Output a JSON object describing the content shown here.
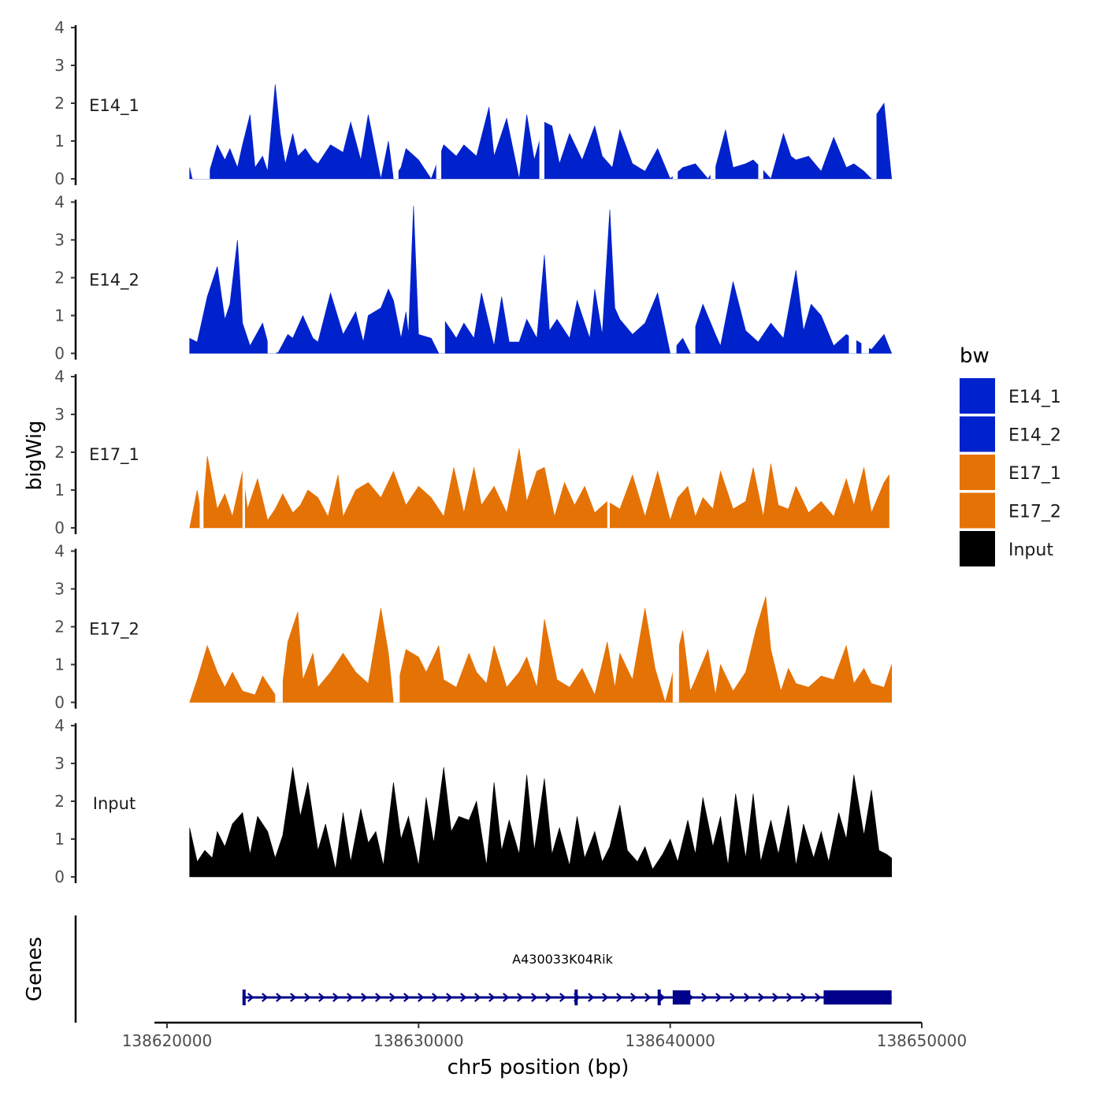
{
  "chart_data": {
    "type": "area",
    "title": "",
    "xlabel": "chr5 position (bp)",
    "ylabel": "bigWig",
    "xlim": [
      138619500,
      138650000
    ],
    "x_ticks": [
      138620000,
      138630000,
      138640000,
      138650000
    ],
    "x_tick_labels": [
      "138620000",
      "138630000",
      "138640000",
      "138650000"
    ],
    "ylim": [
      0,
      4
    ],
    "y_ticks": [
      "0",
      "1",
      "2",
      "3",
      "4"
    ],
    "legend": {
      "title": "bw",
      "placement": "right",
      "entries": [
        {
          "name": "E14_1",
          "color": "#0022CC"
        },
        {
          "name": "E14_2",
          "color": "#0022CC"
        },
        {
          "name": "E17_1",
          "color": "#E57205"
        },
        {
          "name": "E17_2",
          "color": "#E57205"
        },
        {
          "name": "Input",
          "color": "#000000"
        }
      ]
    },
    "series": [
      {
        "name": "E14_1",
        "color": "#0022CC",
        "x": [
          138620900,
          138621000,
          138621600,
          138622000,
          138622300,
          138622500,
          138622800,
          138623000,
          138623300,
          138623500,
          138623800,
          138624000,
          138624300,
          138624500,
          138624700,
          138625000,
          138625200,
          138625500,
          138625800,
          138626000,
          138626500,
          138627000,
          138627300,
          138627700,
          138628000,
          138628500,
          138628800,
          138629000,
          138629300,
          138629500,
          138630000,
          138630500,
          138631000,
          138631500,
          138631800,
          138632300,
          138632800,
          138633000,
          138633500,
          138634000,
          138634300,
          138634600,
          138635000,
          138635300,
          138635600,
          138636000,
          138636500,
          138637000,
          138637300,
          138637700,
          138638000,
          138638500,
          138639000,
          138639500,
          138640000,
          138640500,
          138641000,
          138641500,
          138641800,
          138642200,
          138642500,
          138643000,
          138643300,
          138643600,
          138644000,
          138644500,
          138644800,
          138645000,
          138645500,
          138646000,
          138646500,
          138647000,
          138647300,
          138647700,
          138648000,
          138648200,
          138648500,
          138648800
        ],
        "values": [
          0.3,
          0,
          0,
          0.9,
          0.5,
          0.8,
          0.3,
          0.9,
          1.7,
          0.3,
          0.6,
          0.2,
          2.5,
          1.2,
          0.4,
          1.2,
          0.6,
          0.8,
          0.5,
          0.4,
          0.9,
          0.7,
          1.5,
          0.5,
          1.7,
          0,
          1,
          0,
          0.3,
          0.8,
          0.5,
          0,
          0.9,
          0.6,
          0.9,
          0.6,
          1.9,
          0.6,
          1.6,
          0,
          1.7,
          0.5,
          1.5,
          1.4,
          0.4,
          1.2,
          0.5,
          1.4,
          0.6,
          0.3,
          1.3,
          0.4,
          0.2,
          0.8,
          0,
          0.3,
          0.4,
          0,
          0.3,
          1.3,
          0.3,
          0.4,
          0.5,
          0.3,
          0,
          1.2,
          0.6,
          0.5,
          0.6,
          0.2,
          1.1,
          0.3,
          0.4,
          0.2,
          0,
          1.7,
          2,
          0
        ],
        "gaps": [
          [
            138621050,
            138621700
          ],
          [
            138629000,
            138629200
          ],
          [
            138630700,
            138630900
          ],
          [
            138634800,
            138635000
          ],
          [
            138640100,
            138640300
          ],
          [
            138641600,
            138641800
          ],
          [
            138643500,
            138643700
          ],
          [
            138648000,
            138648200
          ]
        ]
      },
      {
        "name": "E14_2",
        "color": "#0022CC",
        "x": [
          138620900,
          138621200,
          138621600,
          138622000,
          138622300,
          138622500,
          138622800,
          138623000,
          138623300,
          138623800,
          138624000,
          138624400,
          138624800,
          138625000,
          138625400,
          138625800,
          138626000,
          138626500,
          138627000,
          138627500,
          138627800,
          138628000,
          138628500,
          138628800,
          138629000,
          138629300,
          138629500,
          138629600,
          138629800,
          138630000,
          138630500,
          138630800,
          138631000,
          138631500,
          138631800,
          138632200,
          138632500,
          138633000,
          138633300,
          138633600,
          138634000,
          138634300,
          138634700,
          138635000,
          138635200,
          138635500,
          138636000,
          138636300,
          138636800,
          138637000,
          138637300,
          138637600,
          138637800,
          138638000,
          138638500,
          138639000,
          138639500,
          138640000,
          138640500,
          138640800,
          138641000,
          138641300,
          138641800,
          138642000,
          138642500,
          138643000,
          138643500,
          138644000,
          138644500,
          138645000,
          138645300,
          138645600,
          138646000,
          138646500,
          138647000,
          138647500,
          138648000,
          138648500,
          138648800
        ],
        "values": [
          0.4,
          0.3,
          1.5,
          2.3,
          0.9,
          1.3,
          3,
          0.8,
          0.2,
          0.8,
          0.3,
          0,
          0.5,
          0.4,
          1,
          0.4,
          0.3,
          1.6,
          0.5,
          1.1,
          0.3,
          1,
          1.2,
          1.7,
          1.4,
          0.4,
          1.1,
          0.5,
          3.9,
          0.5,
          0.4,
          0,
          0.9,
          0.4,
          0.8,
          0.4,
          1.6,
          0.2,
          1.5,
          0.3,
          0.3,
          0.9,
          0.4,
          2.6,
          0.6,
          0.9,
          0.4,
          1.4,
          0.4,
          1.7,
          0.5,
          3.8,
          1.2,
          0.9,
          0.5,
          0.8,
          1.6,
          0,
          0.4,
          0,
          0.7,
          1.3,
          0.5,
          0.2,
          1.9,
          0.6,
          0.3,
          0.8,
          0.4,
          2.2,
          0.6,
          1.3,
          1,
          0.2,
          0.5,
          0.3,
          0.1,
          0.5,
          0
        ],
        "gaps": [
          [
            138624000,
            138624350
          ],
          [
            138630800,
            138631050
          ],
          [
            138640000,
            138640250
          ],
          [
            138640800,
            138641000
          ],
          [
            138647100,
            138647400
          ],
          [
            138647600,
            138647900
          ]
        ]
      },
      {
        "name": "E17_1",
        "color": "#E57205",
        "x": [
          138620900,
          138621200,
          138621400,
          138621600,
          138622000,
          138622300,
          138622600,
          138623000,
          138623200,
          138623600,
          138624000,
          138624300,
          138624600,
          138625000,
          138625300,
          138625600,
          138626000,
          138626400,
          138626800,
          138627000,
          138627500,
          138628000,
          138628500,
          138629000,
          138629500,
          138630000,
          138630500,
          138631000,
          138631400,
          138631800,
          138632200,
          138632500,
          138633000,
          138633500,
          138634000,
          138634300,
          138634700,
          138635000,
          138635400,
          138635800,
          138636200,
          138636600,
          138637000,
          138637500,
          138638000,
          138638500,
          138639000,
          138639500,
          138640000,
          138640300,
          138640700,
          138641000,
          138641300,
          138641700,
          138642000,
          138642500,
          138643000,
          138643300,
          138643700,
          138644000,
          138644300,
          138644700,
          138645000,
          138645500,
          138646000,
          138646500,
          138647000,
          138647300,
          138647700,
          138648000,
          138648500,
          138648700
        ],
        "values": [
          0,
          1,
          0.2,
          1.9,
          0.5,
          0.9,
          0.3,
          1.5,
          0.5,
          1.3,
          0.2,
          0.5,
          0.9,
          0.4,
          0.6,
          1,
          0.8,
          0.3,
          1.4,
          0.3,
          1,
          1.2,
          0.8,
          1.5,
          0.6,
          1.1,
          0.8,
          0.3,
          1.6,
          0.4,
          1.6,
          0.6,
          1.1,
          0.4,
          2.1,
          0.7,
          1.5,
          1.6,
          0.3,
          1.2,
          0.6,
          1.1,
          0.4,
          0.7,
          0.5,
          1.4,
          0.3,
          1.5,
          0.2,
          0.8,
          1.1,
          0.3,
          0.8,
          0.5,
          1.5,
          0.5,
          0.7,
          1.6,
          0.3,
          1.7,
          0.6,
          0.5,
          1.1,
          0.4,
          0.7,
          0.3,
          1.3,
          0.6,
          1.6,
          0.4,
          1.2,
          1.4
        ],
        "gaps": [
          [
            138621300,
            138621450
          ],
          [
            138623000,
            138623100
          ],
          [
            138637500,
            138637600
          ]
        ]
      },
      {
        "name": "E17_2",
        "color": "#E57205",
        "x": [
          138620900,
          138621200,
          138621600,
          138622000,
          138622300,
          138622600,
          138623000,
          138623500,
          138623800,
          138624000,
          138624500,
          138624800,
          138625200,
          138625400,
          138625800,
          138626000,
          138626500,
          138627000,
          138627500,
          138628000,
          138628500,
          138628800,
          138629000,
          138629500,
          138630000,
          138630300,
          138630800,
          138631000,
          138631500,
          138632000,
          138632300,
          138632700,
          138633000,
          138633500,
          138634000,
          138634300,
          138634700,
          138635000,
          138635500,
          138636000,
          138636500,
          138637000,
          138637500,
          138637800,
          138638000,
          138638500,
          138639000,
          138639400,
          138639800,
          138640000,
          138640500,
          138640800,
          138641000,
          138641500,
          138641800,
          138642000,
          138642500,
          138643000,
          138643400,
          138643800,
          138644000,
          138644400,
          138644700,
          138645000,
          138645500,
          138646000,
          138646500,
          138647000,
          138647300,
          138647700,
          138648000,
          138648500,
          138648800
        ],
        "values": [
          0,
          0.6,
          1.5,
          0.8,
          0.4,
          0.8,
          0.3,
          0.2,
          0.7,
          0.5,
          0,
          1.6,
          2.4,
          0.6,
          1.3,
          0.4,
          0.8,
          1.3,
          0.8,
          0.5,
          2.5,
          1.3,
          0,
          1.4,
          1.2,
          0.8,
          1.5,
          0.6,
          0.4,
          1.3,
          0.8,
          0.5,
          1.5,
          0.4,
          0.8,
          1.2,
          0.4,
          2.2,
          0.6,
          0.4,
          0.9,
          0.2,
          1.6,
          0.4,
          1.3,
          0.6,
          2.5,
          0.9,
          0,
          0.5,
          1.9,
          0.3,
          0.6,
          1.4,
          0.2,
          1,
          0.3,
          0.8,
          1.9,
          2.8,
          1.4,
          0.3,
          0.9,
          0.5,
          0.4,
          0.7,
          0.6,
          1.5,
          0.5,
          0.9,
          0.5,
          0.4,
          1
        ],
        "gaps": [
          [
            138624300,
            138624600
          ],
          [
            138629000,
            138629250
          ],
          [
            138640100,
            138640350
          ]
        ]
      },
      {
        "name": "Input",
        "color": "#000000",
        "x": [
          138620900,
          138621200,
          138621500,
          138621800,
          138622000,
          138622300,
          138622600,
          138623000,
          138623300,
          138623600,
          138624000,
          138624300,
          138624600,
          138625000,
          138625300,
          138625600,
          138626000,
          138626300,
          138626700,
          138627000,
          138627300,
          138627700,
          138628000,
          138628300,
          138628600,
          138629000,
          138629300,
          138629600,
          138630000,
          138630300,
          138630600,
          138631000,
          138631300,
          138631600,
          138632000,
          138632300,
          138632700,
          138633000,
          138633300,
          138633600,
          138634000,
          138634300,
          138634600,
          138635000,
          138635300,
          138635600,
          138636000,
          138636300,
          138636600,
          138637000,
          138637300,
          138637600,
          138638000,
          138638300,
          138638700,
          138639000,
          138639300,
          138639700,
          138640000,
          138640300,
          138640700,
          138641000,
          138641300,
          138641700,
          138642000,
          138642300,
          138642600,
          138643000,
          138643300,
          138643600,
          138644000,
          138644300,
          138644700,
          138645000,
          138645300,
          138645700,
          138646000,
          138646300,
          138646700,
          138647000,
          138647300,
          138647700,
          138648000,
          138648300,
          138648600,
          138648800
        ],
        "values": [
          1.3,
          0.4,
          0.7,
          0.5,
          1.2,
          0.8,
          1.4,
          1.7,
          0.6,
          1.6,
          1.2,
          0.5,
          1.1,
          2.9,
          1.6,
          2.5,
          0.7,
          1.4,
          0.2,
          1.7,
          0.4,
          1.8,
          0.9,
          1.2,
          0.3,
          2.5,
          1,
          1.6,
          0.3,
          2.1,
          0.9,
          2.9,
          1.2,
          1.6,
          1.5,
          2,
          0.3,
          2.5,
          0.7,
          1.5,
          0.6,
          2.7,
          0.7,
          2.6,
          0.6,
          1.3,
          0.3,
          1.6,
          0.5,
          1.2,
          0.4,
          0.8,
          1.9,
          0.7,
          0.4,
          0.8,
          0.2,
          0.6,
          1,
          0.4,
          1.5,
          0.6,
          2.1,
          0.8,
          1.6,
          0.3,
          2.2,
          0.5,
          2.2,
          0.4,
          1.5,
          0.6,
          1.9,
          0.3,
          1.4,
          0.5,
          1.2,
          0.4,
          1.7,
          1,
          2.7,
          1.1,
          2.3,
          0.7,
          0.6,
          0.5
        ],
        "gaps": []
      }
    ],
    "genes_track": {
      "label": "Genes",
      "gene_name": "A430033K04Rik",
      "start": 138623000,
      "end": 138648800,
      "strand": "+",
      "exons": [
        [
          138623000,
          138623100
        ],
        [
          138636200,
          138636300
        ],
        [
          138639500,
          138639600
        ],
        [
          138640100,
          138640800
        ],
        [
          138646100,
          138648800
        ]
      ]
    }
  }
}
